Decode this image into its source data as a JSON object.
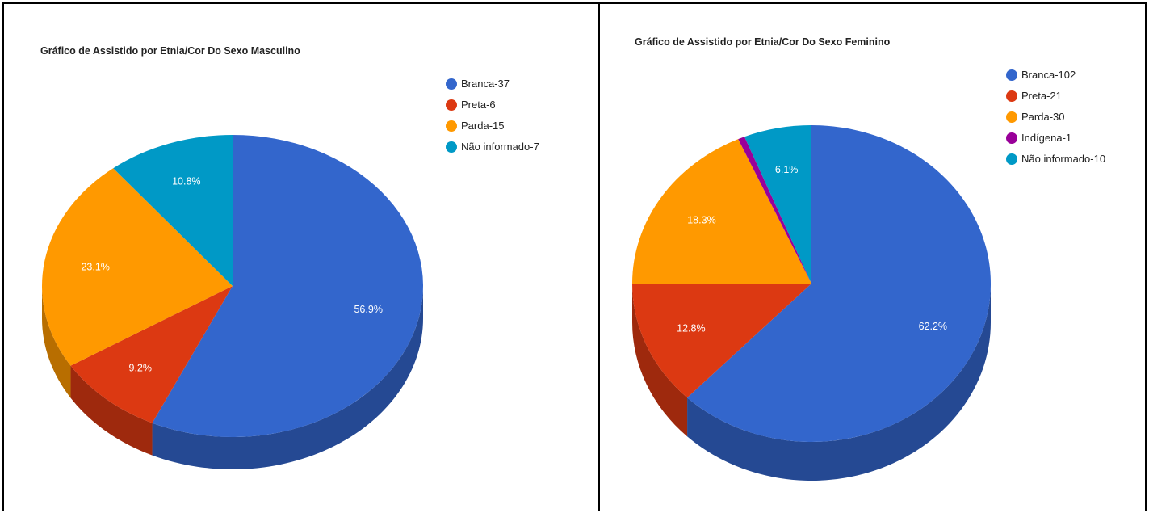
{
  "chart_data": [
    {
      "type": "pie",
      "title": "Gráfico de Assistido por Etnia/Cor Do Sexo Masculino",
      "categories": [
        "Branca",
        "Preta",
        "Parda",
        "Não informado"
      ],
      "values": [
        37,
        6,
        15,
        7
      ],
      "legend_labels": [
        "Branca-37",
        "Preta-6",
        "Parda-15",
        "Não informado-7"
      ],
      "slice_labels": [
        "56.9%",
        "9.2%",
        "23.1%",
        "10.8%"
      ],
      "colors": [
        "#3366cc",
        "#dc3912",
        "#ff9900",
        "#0099c6"
      ],
      "legend_position": "right",
      "three_d": true
    },
    {
      "type": "pie",
      "title": "Gráfico de Assistido por Etnia/Cor Do Sexo Feminino",
      "categories": [
        "Branca",
        "Preta",
        "Parda",
        "Indígena",
        "Não informado"
      ],
      "values": [
        102,
        21,
        30,
        1,
        10
      ],
      "legend_labels": [
        "Branca-102",
        "Preta-21",
        "Parda-30",
        "Indígena-1",
        "Não informado-10"
      ],
      "slice_labels": [
        "62.2%",
        "12.8%",
        "18.3%",
        "",
        "6.1%"
      ],
      "colors": [
        "#3366cc",
        "#dc3912",
        "#ff9900",
        "#990099",
        "#0099c6"
      ],
      "legend_position": "right",
      "three_d": true
    }
  ]
}
